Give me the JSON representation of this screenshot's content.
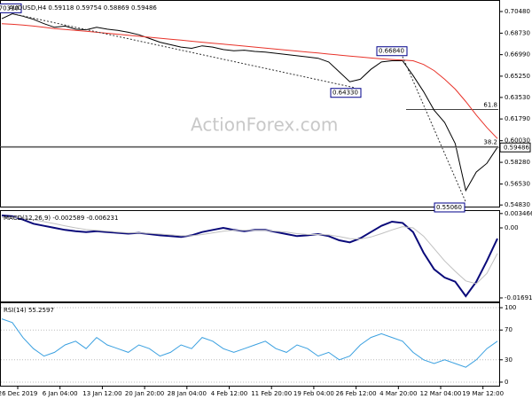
{
  "chart_data": [
    {
      "type": "line",
      "title": "AUDUSD,H4 0.59118 0.59754 0.58869 0.59486",
      "watermark": "ActionForex.com",
      "ylim": [
        0.547,
        0.7134
      ],
      "yticks": [
        {
          "value": 0.7048,
          "label": "0.70480"
        },
        {
          "value": 0.6873,
          "label": "0.68730"
        },
        {
          "value": 0.6699,
          "label": "0.66990"
        },
        {
          "value": 0.6525,
          "label": "0.65250"
        },
        {
          "value": 0.6353,
          "label": "0.63530"
        },
        {
          "value": 0.6179,
          "label": "0.61790"
        },
        {
          "value": 0.6003,
          "label": "0.60030"
        },
        {
          "value": 0.5828,
          "label": "0.58280"
        },
        {
          "value": 0.5653,
          "label": "0.56530"
        },
        {
          "value": 0.5483,
          "label": "0.54830"
        }
      ],
      "series": [
        {
          "color": "#000000",
          "values": [
            0.699,
            0.703,
            0.701,
            0.6985,
            0.695,
            0.692,
            0.693,
            0.6905,
            0.69,
            0.692,
            0.6905,
            0.6895,
            0.688,
            0.686,
            0.683,
            0.68,
            0.678,
            0.676,
            0.675,
            0.677,
            0.676,
            0.674,
            0.673,
            0.6735,
            0.6725,
            0.672,
            0.671,
            0.67,
            0.669,
            0.668,
            0.667,
            0.664,
            0.656,
            0.648,
            0.65,
            0.658,
            0.664,
            0.665,
            0.665,
            0.653,
            0.64,
            0.625,
            0.615,
            0.598,
            0.56,
            0.575,
            0.582,
            0.5949
          ]
        },
        {
          "color": "#e8332a",
          "values": [
            0.695,
            0.6945,
            0.6938,
            0.693,
            0.692,
            0.691,
            0.6902,
            0.6895,
            0.6888,
            0.688,
            0.6872,
            0.6864,
            0.6856,
            0.6848,
            0.684,
            0.6832,
            0.6824,
            0.6816,
            0.6808,
            0.68,
            0.6792,
            0.6784,
            0.6776,
            0.6768,
            0.676,
            0.6752,
            0.6744,
            0.6736,
            0.6728,
            0.672,
            0.6712,
            0.6704,
            0.6696,
            0.6688,
            0.668,
            0.6672,
            0.6665,
            0.666,
            0.6655,
            0.665,
            0.662,
            0.657,
            0.65,
            0.642,
            0.632,
            0.621,
            0.611,
            0.602
          ]
        }
      ],
      "annotations": [
        {
          "text": "0.70310",
          "value": 0.7031
        },
        {
          "text": "0.64330",
          "value": 0.6433
        },
        {
          "text": "0.66840",
          "value": 0.6684
        },
        {
          "text": "0.55060",
          "value": 0.5506
        }
      ],
      "levels": [
        {
          "label": "61.8",
          "value": 0.6255
        },
        {
          "label": "38.2",
          "value": 0.5955
        }
      ],
      "last": {
        "label": "0.59486",
        "value": 0.59486
      }
    },
    {
      "type": "line",
      "title": "MACD(12,26,9) -0.002589 -0.006231",
      "ylim": [
        -0.01778,
        0.00407
      ],
      "yticks": [
        {
          "value": 0.003466,
          "label": "0.003466"
        },
        {
          "value": 0,
          "label": "0.00"
        },
        {
          "value": -0.016919,
          "label": "-0.016919"
        }
      ],
      "series": [
        {
          "color": "#0a0a7a",
          "values": [
            0.003,
            0.0028,
            0.002,
            0.001,
            0.0005,
            0,
            -0.0005,
            -0.0008,
            -0.001,
            -0.0008,
            -0.001,
            -0.0012,
            -0.0014,
            -0.0012,
            -0.0015,
            -0.0018,
            -0.002,
            -0.0022,
            -0.0018,
            -0.001,
            -0.0005,
            0,
            -0.0005,
            -0.0008,
            -0.0005,
            -0.0005,
            -0.001,
            -0.0015,
            -0.002,
            -0.0018,
            -0.0015,
            -0.002,
            -0.003,
            -0.0035,
            -0.0025,
            -0.001,
            0.0005,
            0.0015,
            0.0012,
            -0.001,
            -0.006,
            -0.01,
            -0.012,
            -0.013,
            -0.0165,
            -0.013,
            -0.008,
            -0.0026
          ]
        },
        {
          "color": "#c0c0c0",
          "values": [
            0.0025,
            0.0026,
            0.0024,
            0.002,
            0.0015,
            0.001,
            0.0005,
            0,
            -0.0004,
            -0.0006,
            -0.0008,
            -0.001,
            -0.0012,
            -0.0012,
            -0.0013,
            -0.0015,
            -0.0017,
            -0.0019,
            -0.0019,
            -0.0016,
            -0.0012,
            -0.0008,
            -0.0006,
            -0.0006,
            -0.0006,
            -0.0006,
            -0.0008,
            -0.001,
            -0.0014,
            -0.0016,
            -0.0016,
            -0.0017,
            -0.0021,
            -0.0026,
            -0.0027,
            -0.0022,
            -0.0014,
            -0.0005,
            0.0003,
            0,
            -0.002,
            -0.005,
            -0.008,
            -0.0105,
            -0.0128,
            -0.0135,
            -0.011,
            -0.0062
          ]
        }
      ]
    },
    {
      "type": "line",
      "title": "RSI(14) 55.2597",
      "ylim": [
        -4.8,
        106
      ],
      "yticks": [
        100,
        70,
        30,
        0
      ],
      "series": [
        {
          "color": "#3aa0e0",
          "values": [
            85,
            80,
            60,
            45,
            35,
            40,
            50,
            55,
            45,
            60,
            50,
            45,
            40,
            50,
            45,
            35,
            40,
            50,
            45,
            60,
            55,
            45,
            40,
            45,
            50,
            55,
            45,
            40,
            50,
            45,
            35,
            40,
            30,
            35,
            50,
            60,
            65,
            60,
            55,
            40,
            30,
            25,
            30,
            25,
            20,
            30,
            45,
            55
          ]
        }
      ],
      "x_labels": [
        "26 Dec 2019",
        "6 Jan 04:00",
        "13 Jan 12:00",
        "20 Jan 20:00",
        "28 Jan 04:00",
        "4 Feb 12:00",
        "11 Feb 20:00",
        "19 Feb 04:00",
        "26 Feb 12:00",
        "4 Mar 20:00",
        "12 Mar 04:00",
        "19 Mar 12:00"
      ]
    }
  ]
}
